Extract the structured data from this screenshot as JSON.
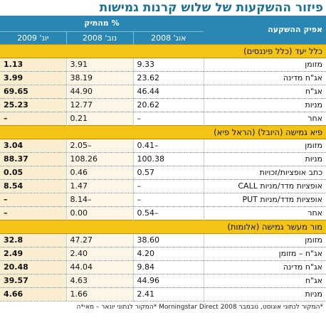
{
  "title": "פיזור ההשקעות של שלוש קרנות גמישות",
  "header": {
    "type_label": "אפיק ההשקעה",
    "pct_label": "% מהתיק",
    "cols": [
      "אוג' 2008",
      "נוב' 2008",
      "יונ' 2009"
    ]
  },
  "sections": [
    {
      "name": "כלל יעד (כלל פיננסים)",
      "rows": [
        {
          "label": "מזומן",
          "aug": "9.33",
          "nov": "3.91",
          "jun": "1.13"
        },
        {
          "label": "אג\"ח מדינה",
          "aug": "23.62",
          "nov": "38.19",
          "jun": "3.99"
        },
        {
          "label": "אג\"ח",
          "aug": "46.44",
          "nov": "44.90",
          "jun": "69.65"
        },
        {
          "label": "מניות",
          "aug": "20.62",
          "nov": "12.77",
          "jun": "25.23"
        },
        {
          "label": "אחר",
          "aug": "–",
          "nov": "0.21",
          "jun": "–"
        }
      ]
    },
    {
      "name": "פיא גמישה (היובל) (הראל פיא)",
      "rows": [
        {
          "label": "מזומן",
          "aug": "0.41–",
          "nov": "2.05–",
          "jun": "3.04"
        },
        {
          "label": "מניות",
          "aug": "100.38",
          "nov": "108.26",
          "jun": "88.37"
        },
        {
          "label": "כתב אופציות/זכויות",
          "aug": "0.57",
          "nov": "0.46",
          "jun": "0.05"
        },
        {
          "label": "אופציות מדד/מניות CALL",
          "aug": "–",
          "nov": "1.47",
          "jun": "8.54"
        },
        {
          "label": "אופציות מדד/מניות PUT",
          "aug": "–",
          "nov": "8.14–",
          "jun": "–"
        },
        {
          "label": "אחר",
          "aug": "0.54–",
          "nov": "0.00",
          "jun": "–"
        }
      ]
    },
    {
      "name": "מור מעשר גמישה (אלומות)",
      "rows": [
        {
          "label": "מזומן",
          "aug": "38.60",
          "nov": "47.27",
          "jun": "32.8"
        },
        {
          "label": "אג\"ח – מזומן",
          "aug": "4.20",
          "nov": "2.40",
          "jun": "2.49"
        },
        {
          "label": "אג\"ח מדינה",
          "aug": "9.84",
          "nov": "44.04",
          "jun": "20.48"
        },
        {
          "label": "אג\"ח",
          "aug": "44.96",
          "nov": "4.63",
          "jun": "39.57"
        },
        {
          "label": "מניות",
          "aug": "2.41",
          "nov": "1.66",
          "jun": "4.66"
        }
      ]
    }
  ],
  "footnote": "*המקור לנתוני אוגוסט, נובמבר Morningstar Direct 2008 *המקור לנתוני יונאר – מאי*ה"
}
